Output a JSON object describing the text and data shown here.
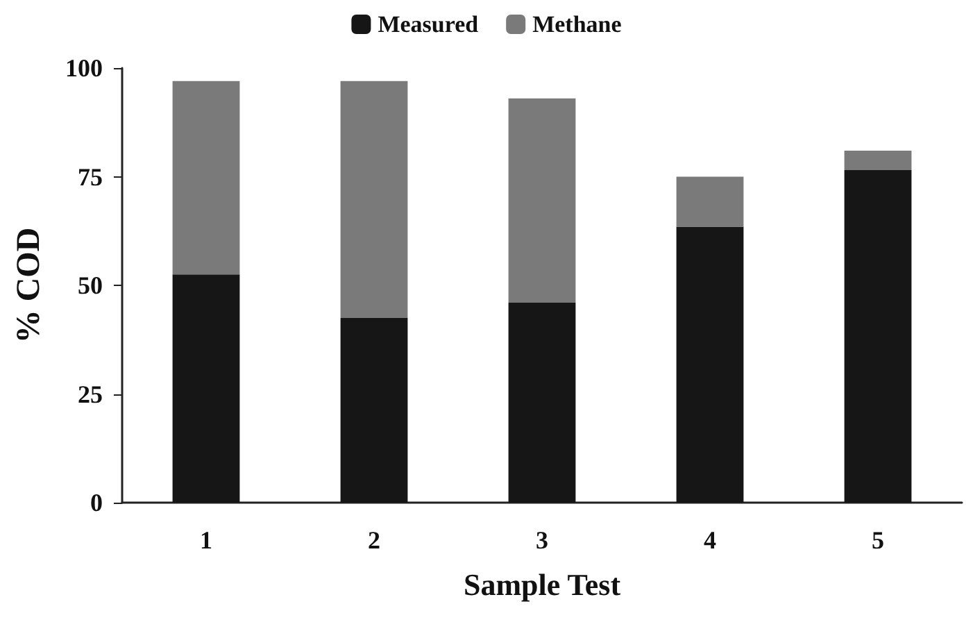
{
  "chart_data": {
    "type": "bar",
    "stacked": true,
    "xlabel": "Sample Test",
    "ylabel": "% COD",
    "categories": [
      "1",
      "2",
      "3",
      "4",
      "5"
    ],
    "series": [
      {
        "name": "Measured",
        "color": "#161616",
        "values": [
          52.5,
          42.5,
          46,
          63.5,
          76.5
        ]
      },
      {
        "name": "Methane",
        "color": "#7a7a7a",
        "values": [
          44.5,
          54.5,
          47,
          11.5,
          4.5
        ]
      }
    ],
    "ylim": [
      0,
      100
    ],
    "yticks": [
      0,
      25,
      50,
      75,
      100
    ],
    "grid": false,
    "legend": "top"
  }
}
